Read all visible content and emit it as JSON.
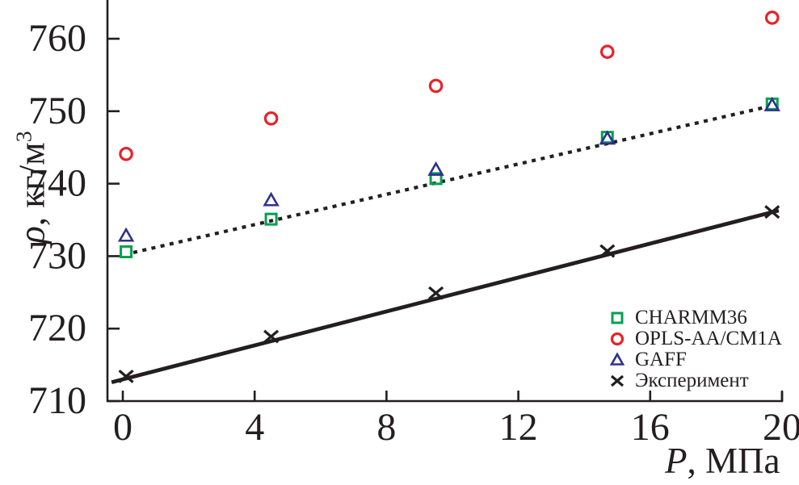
{
  "chart_data": {
    "type": "scatter",
    "xlabel": {
      "italic": "P",
      "rest": ", МПа"
    },
    "ylabel": {
      "italic": "ρ",
      "rest": ", кг/м",
      "sup": "3"
    },
    "x_ticks": [
      0,
      4,
      8,
      12,
      16,
      20
    ],
    "y_ticks": [
      710,
      720,
      730,
      740,
      750,
      760
    ],
    "xlim": [
      -0.47,
      20
    ],
    "ylim": [
      710,
      765.4
    ],
    "grid": false,
    "legend_position": "bottom-right",
    "x": [
      0.1,
      4.5,
      9.5,
      14.7,
      19.7
    ],
    "series": [
      {
        "name": "CHARMM36",
        "marker": "square",
        "color": "#00a14e",
        "values": [
          730.6,
          735.1,
          740.7,
          746.4,
          751.0
        ]
      },
      {
        "name": "OPLS-AA/CM1A",
        "marker": "circle",
        "color": "#e62329",
        "values": [
          744.1,
          749.0,
          753.5,
          758.2,
          762.9
        ]
      },
      {
        "name": "GAFF",
        "marker": "triangle",
        "color": "#2e3092",
        "values": [
          732.8,
          737.7,
          741.9,
          746.2,
          750.8
        ]
      },
      {
        "name": "Эксперимент",
        "marker": "cross",
        "color": "#231f20",
        "values": [
          713.4,
          718.9,
          724.9,
          730.7,
          736.1
        ]
      }
    ],
    "fit_lines": [
      {
        "style": "solid",
        "color": "#231f20",
        "x1": -0.34,
        "y1": 712.6,
        "x2": 19.9,
        "y2": 736.3
      },
      {
        "style": "dotted",
        "color": "#231f20",
        "x1": 0.32,
        "y1": 730.5,
        "x2": 19.45,
        "y2": 750.5
      }
    ]
  }
}
